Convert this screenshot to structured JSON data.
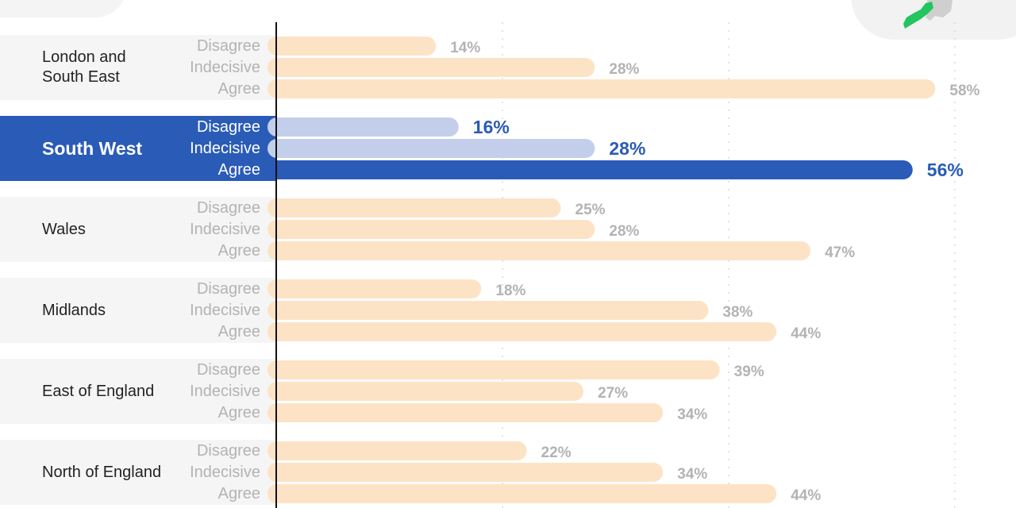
{
  "chart_data": {
    "type": "bar",
    "orientation": "horizontal",
    "categories": [
      "London and South East",
      "South West",
      "Wales",
      "Midlands",
      "East of England",
      "North of England"
    ],
    "series": [
      {
        "name": "Disagree",
        "values": [
          14,
          16,
          25,
          18,
          39,
          22
        ]
      },
      {
        "name": "Indecisive",
        "values": [
          28,
          28,
          28,
          38,
          27,
          34
        ]
      },
      {
        "name": "Agree",
        "values": [
          58,
          56,
          47,
          44,
          34,
          44
        ]
      }
    ],
    "value_labels": [
      [
        "14%",
        "28%",
        "58%"
      ],
      [
        "16%",
        "28%",
        "56%"
      ],
      [
        "25%",
        "28%",
        "47%"
      ],
      [
        "18%",
        "38%",
        "44%"
      ],
      [
        "39%",
        "27%",
        "34%"
      ],
      [
        "22%",
        "34%",
        "44%"
      ]
    ],
    "highlighted_category": "South West",
    "xlim": [
      0,
      60
    ],
    "grid": true,
    "colors": {
      "bar": "#fde3c5",
      "label": "#b3b3b3",
      "highlight_bar": "#2a5bb7",
      "highlight_bar_light": "#c3cfea",
      "highlight_label": "#2a5bb7",
      "band": "#f5f5f5",
      "grid": "#d9d9d9",
      "map_highlight": "#22c55e",
      "map_base": "#cfcfcf"
    }
  },
  "rows": [
    {
      "name": "London and South East",
      "name_lines": [
        "London and",
        "South East"
      ],
      "labels": [
        "Disagree",
        "Indecisive",
        "Agree"
      ]
    },
    {
      "name": "South West",
      "name_lines": [
        "South West"
      ],
      "labels": [
        "Disagree",
        "Indecisive",
        "Agree"
      ]
    },
    {
      "name": "Wales",
      "name_lines": [
        "Wales"
      ],
      "labels": [
        "Disagree",
        "Indecisive",
        "Agree"
      ]
    },
    {
      "name": "Midlands",
      "name_lines": [
        "Midlands"
      ],
      "labels": [
        "Disagree",
        "Indecisive",
        "Agree"
      ]
    },
    {
      "name": "East of England",
      "name_lines": [
        "East of England"
      ],
      "labels": [
        "Disagree",
        "Indecisive",
        "Agree"
      ]
    },
    {
      "name": "North of England",
      "name_lines": [
        "North of England"
      ],
      "labels": [
        "Disagree",
        "Indecisive",
        "Agree"
      ]
    }
  ],
  "map_icon": "uk-map-south-west-highlight-icon"
}
